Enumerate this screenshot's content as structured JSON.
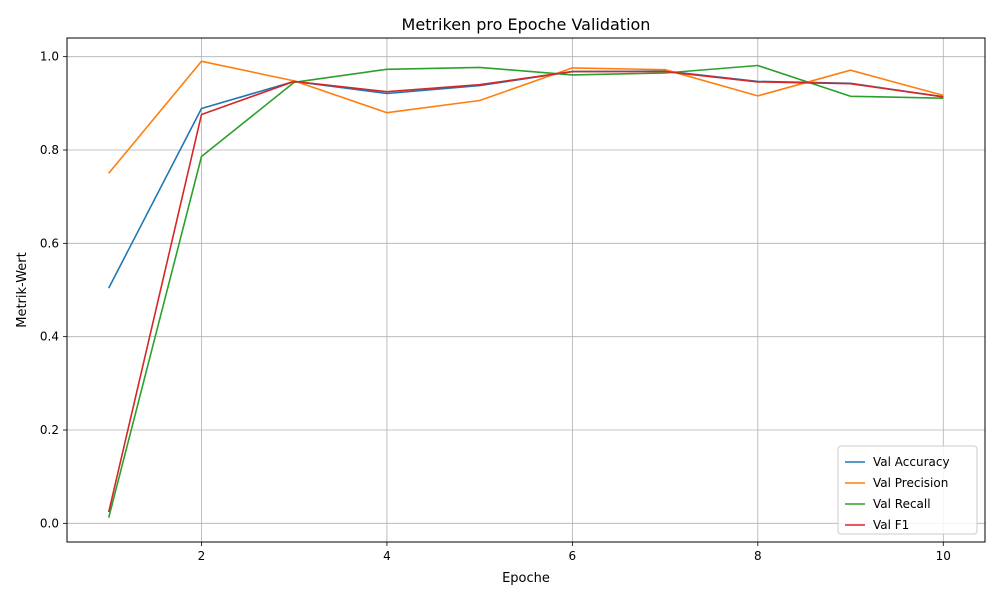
{
  "chart_data": {
    "type": "line",
    "title": "Metriken pro Epoche Validation",
    "xlabel": "Epoche",
    "ylabel": "Metrik-Wert",
    "xlim": [
      0.55,
      10.45
    ],
    "ylim": [
      -0.04,
      1.04
    ],
    "xticks": [
      2,
      4,
      6,
      8,
      10
    ],
    "yticks": [
      0.0,
      0.2,
      0.4,
      0.6,
      0.8,
      1.0
    ],
    "xtick_labels": [
      "2",
      "4",
      "6",
      "8",
      "10"
    ],
    "ytick_labels": [
      "0.0",
      "0.2",
      "0.4",
      "0.6",
      "0.8",
      "1.0"
    ],
    "grid": true,
    "legend_position": "bottom-right",
    "x": [
      1,
      2,
      3,
      4,
      5,
      6,
      7,
      8,
      9,
      10
    ],
    "series": [
      {
        "name": "Val Accuracy",
        "color": "#1f77b4",
        "values": [
          0.504,
          0.889,
          0.947,
          0.921,
          0.938,
          0.968,
          0.969,
          0.947,
          0.943,
          0.914
        ]
      },
      {
        "name": "Val Precision",
        "color": "#ff7f0e",
        "values": [
          0.75,
          0.99,
          0.948,
          0.88,
          0.906,
          0.976,
          0.972,
          0.916,
          0.971,
          0.917
        ]
      },
      {
        "name": "Val Recall",
        "color": "#2ca02c",
        "values": [
          0.012,
          0.786,
          0.945,
          0.973,
          0.977,
          0.961,
          0.965,
          0.981,
          0.915,
          0.911
        ]
      },
      {
        "name": "Val F1",
        "color": "#d62728",
        "values": [
          0.024,
          0.876,
          0.947,
          0.925,
          0.94,
          0.968,
          0.968,
          0.946,
          0.942,
          0.914
        ]
      }
    ]
  }
}
